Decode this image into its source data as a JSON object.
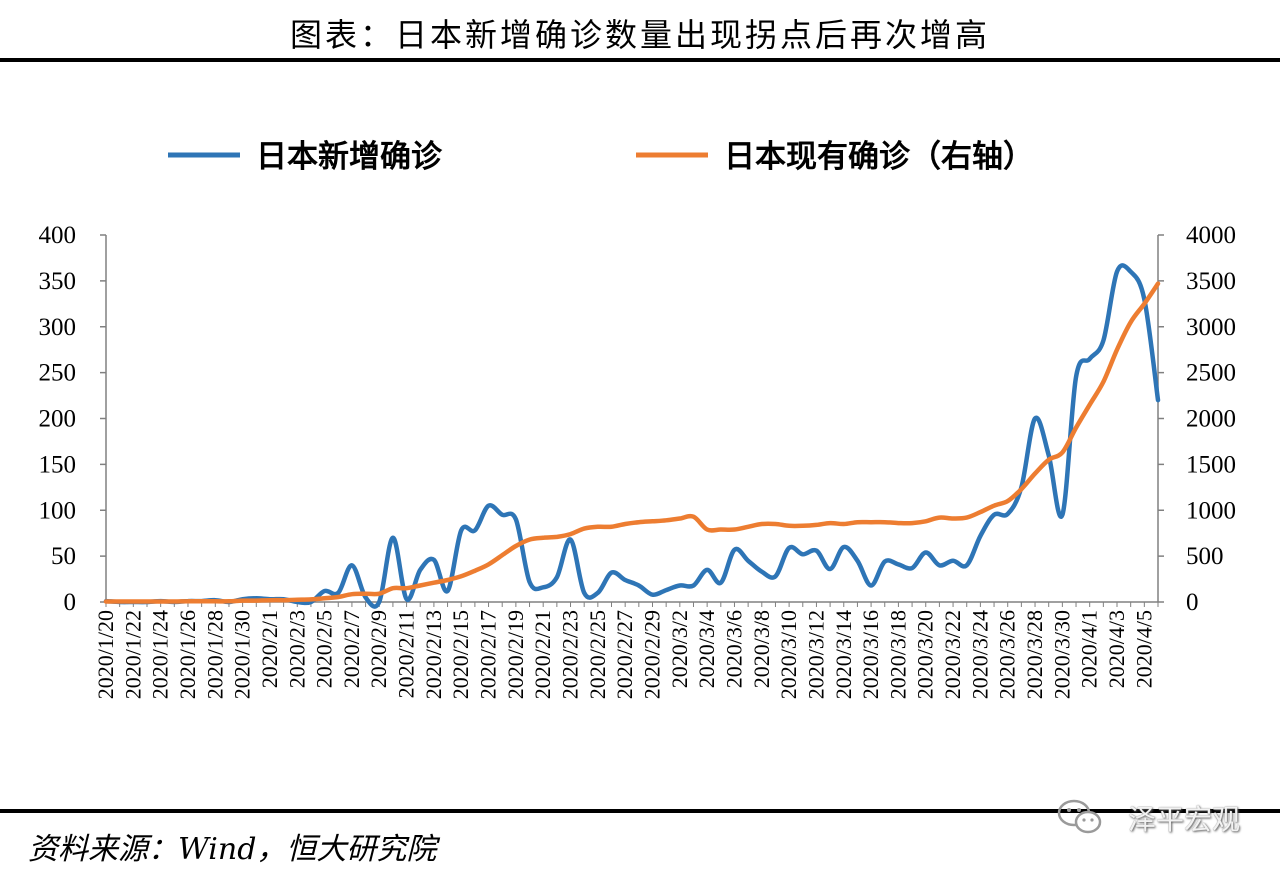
{
  "header": {
    "title": "图表：日本新增确诊数量出现拐点后再次增高"
  },
  "footer": {
    "source": "资料来源：Wind，恒大研究院",
    "watermark": "泽平宏观"
  },
  "colors": {
    "series_left": "#2E75B6",
    "series_right": "#ED7D31",
    "axis": "#808080"
  },
  "chart_data": {
    "type": "line",
    "title": "图表：日本新增确诊数量出现拐点后再次增高",
    "legend_position": "top",
    "grid": false,
    "x": [
      "2020/1/20",
      "2020/1/21",
      "2020/1/22",
      "2020/1/23",
      "2020/1/24",
      "2020/1/25",
      "2020/1/26",
      "2020/1/27",
      "2020/1/28",
      "2020/1/29",
      "2020/1/30",
      "2020/1/31",
      "2020/2/1",
      "2020/2/2",
      "2020/2/3",
      "2020/2/4",
      "2020/2/5",
      "2020/2/6",
      "2020/2/7",
      "2020/2/8",
      "2020/2/9",
      "2020/2/10",
      "2020/2/11",
      "2020/2/12",
      "2020/2/13",
      "2020/2/14",
      "2020/2/15",
      "2020/2/16",
      "2020/2/17",
      "2020/2/18",
      "2020/2/19",
      "2020/2/20",
      "2020/2/21",
      "2020/2/22",
      "2020/2/23",
      "2020/2/24",
      "2020/2/25",
      "2020/2/26",
      "2020/2/27",
      "2020/2/28",
      "2020/2/29",
      "2020/3/1",
      "2020/3/2",
      "2020/3/3",
      "2020/3/4",
      "2020/3/5",
      "2020/3/6",
      "2020/3/7",
      "2020/3/8",
      "2020/3/9",
      "2020/3/10",
      "2020/3/11",
      "2020/3/12",
      "2020/3/13",
      "2020/3/14",
      "2020/3/15",
      "2020/3/16",
      "2020/3/17",
      "2020/3/18",
      "2020/3/19",
      "2020/3/20",
      "2020/3/21",
      "2020/3/22",
      "2020/3/23",
      "2020/3/24",
      "2020/3/25",
      "2020/3/26",
      "2020/3/27",
      "2020/3/28",
      "2020/3/29",
      "2020/3/30",
      "2020/3/31",
      "2020/4/1",
      "2020/4/2",
      "2020/4/3",
      "2020/4/4",
      "2020/4/5",
      "2020/4/6"
    ],
    "x_tick_labels": [
      "2020/1/20",
      "2020/1/22",
      "2020/1/24",
      "2020/1/26",
      "2020/1/28",
      "2020/1/30",
      "2020/2/1",
      "2020/2/3",
      "2020/2/5",
      "2020/2/7",
      "2020/2/9",
      "2020/2/11",
      "2020/2/13",
      "2020/2/15",
      "2020/2/17",
      "2020/2/19",
      "2020/2/21",
      "2020/2/23",
      "2020/2/25",
      "2020/2/27",
      "2020/2/29",
      "2020/3/2",
      "2020/3/4",
      "2020/3/6",
      "2020/3/8",
      "2020/3/10",
      "2020/3/12",
      "2020/3/14",
      "2020/3/16",
      "2020/3/18",
      "2020/3/20",
      "2020/3/22",
      "2020/3/24",
      "2020/3/26",
      "2020/3/28",
      "2020/3/30",
      "2020/4/1",
      "2020/4/3",
      "2020/4/5"
    ],
    "y_left": {
      "ylim": [
        0,
        400
      ],
      "ticks": [
        0,
        50,
        100,
        150,
        200,
        250,
        300,
        350,
        400
      ]
    },
    "y_right": {
      "ylim": [
        0,
        4000
      ],
      "ticks": [
        0,
        500,
        1000,
        1500,
        2000,
        2500,
        3000,
        3500,
        4000
      ]
    },
    "series": [
      {
        "name": "日本新增确诊",
        "axis": "left",
        "values": [
          1,
          0,
          0,
          0,
          1,
          0,
          1,
          1,
          2,
          0,
          3,
          4,
          3,
          3,
          0,
          0,
          12,
          10,
          40,
          5,
          0,
          70,
          3,
          35,
          46,
          12,
          78,
          78,
          105,
          95,
          90,
          22,
          16,
          27,
          68,
          10,
          10,
          32,
          24,
          18,
          8,
          13,
          18,
          18,
          35,
          21,
          57,
          45,
          33,
          28,
          59,
          52,
          56,
          36,
          60,
          45,
          18,
          44,
          41,
          37,
          54,
          40,
          45,
          40,
          72,
          95,
          96,
          125,
          200,
          160,
          95,
          245,
          265,
          285,
          360,
          360,
          330,
          220
        ]
      },
      {
        "name": "日本现有确诊（右轴）",
        "axis": "right",
        "values": [
          5,
          5,
          5,
          5,
          5,
          5,
          8,
          8,
          8,
          8,
          15,
          15,
          20,
          20,
          25,
          28,
          40,
          55,
          85,
          90,
          90,
          150,
          150,
          180,
          210,
          240,
          280,
          340,
          410,
          510,
          610,
          680,
          700,
          710,
          740,
          800,
          820,
          820,
          850,
          870,
          880,
          890,
          910,
          930,
          790,
          790,
          790,
          820,
          850,
          850,
          830,
          830,
          840,
          860,
          850,
          870,
          870,
          870,
          860,
          860,
          880,
          920,
          910,
          920,
          980,
          1050,
          1100,
          1230,
          1400,
          1550,
          1630,
          1900,
          2150,
          2400,
          2750,
          3050,
          3250,
          3470
        ]
      }
    ]
  }
}
